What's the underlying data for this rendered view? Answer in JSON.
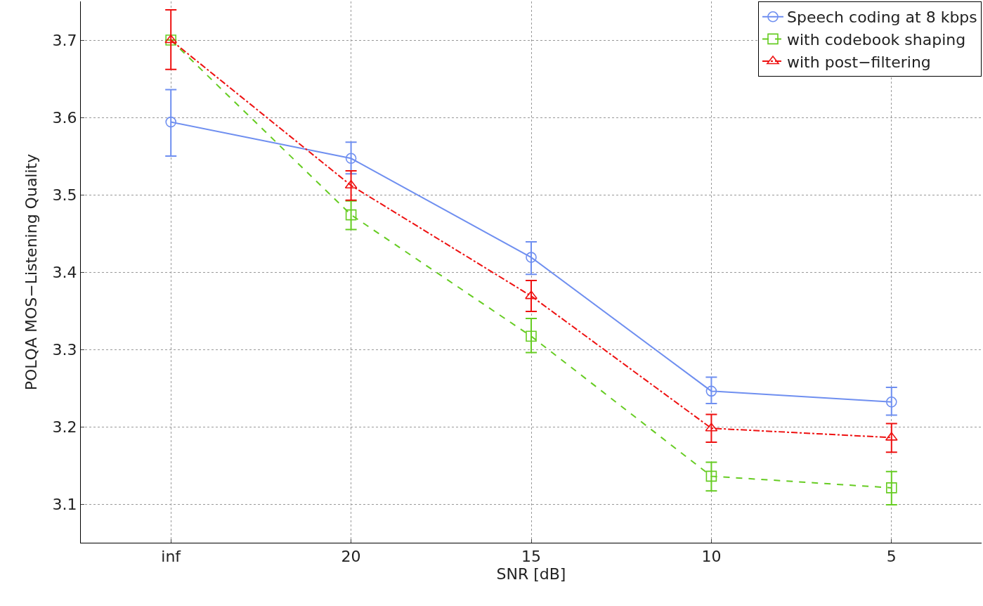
{
  "chart_data": {
    "type": "line",
    "xlabel": "SNR [dB]",
    "ylabel": "POLQA MOS−Listening Quality",
    "categories": [
      "inf",
      "20",
      "15",
      "10",
      "5"
    ],
    "ylim": [
      3.05,
      3.75
    ],
    "yticks": [
      3.1,
      3.2,
      3.3,
      3.4,
      3.5,
      3.6,
      3.7
    ],
    "grid": true,
    "legend": "top right",
    "series": [
      {
        "name": "Speech coding at 8 kbps",
        "color": "#6f8ff0",
        "marker": "circle",
        "line_style": "solid",
        "values": [
          3.594,
          3.547,
          3.419,
          3.246,
          3.232
        ],
        "errors": [
          [
            3.55,
            3.636
          ],
          [
            3.527,
            3.568
          ],
          [
            3.397,
            3.439
          ],
          [
            3.23,
            3.264
          ],
          [
            3.215,
            3.251
          ]
        ]
      },
      {
        "name": "with codebook shaping",
        "color": "#66cc22",
        "marker": "square",
        "line_style": "dashed",
        "values": [
          3.7,
          3.474,
          3.317,
          3.136,
          3.121
        ],
        "errors": [
          null,
          [
            3.455,
            3.492
          ],
          [
            3.296,
            3.34
          ],
          [
            3.117,
            3.154
          ],
          [
            3.099,
            3.142
          ]
        ]
      },
      {
        "name": "with post−filtering",
        "color": "#ee1111",
        "marker": "triangle",
        "line_style": "dashdot",
        "values": [
          3.7,
          3.512,
          3.369,
          3.198,
          3.186
        ],
        "errors": [
          [
            3.662,
            3.739
          ],
          [
            3.493,
            3.531
          ],
          [
            3.349,
            3.389
          ],
          [
            3.18,
            3.216
          ],
          [
            3.167,
            3.204
          ]
        ]
      }
    ]
  }
}
